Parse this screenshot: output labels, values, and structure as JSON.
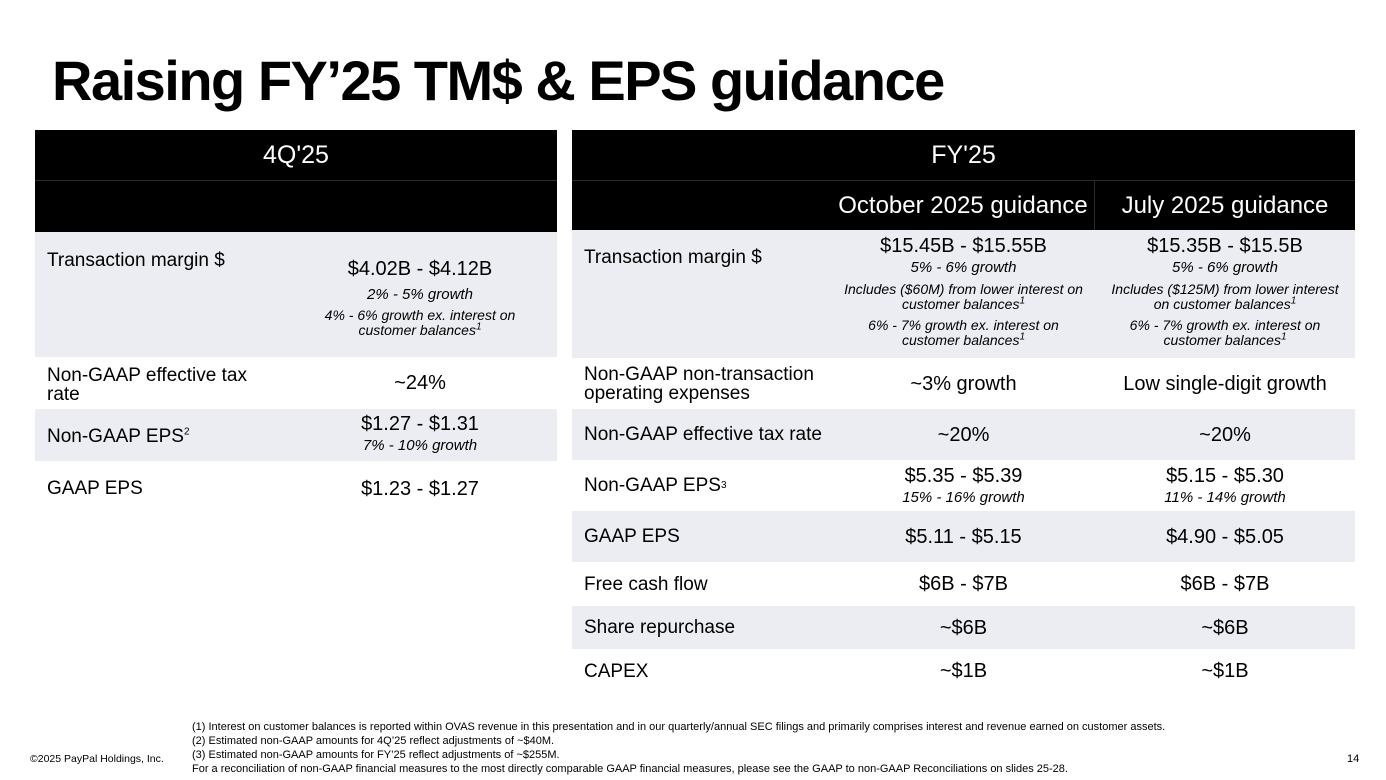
{
  "title": "Raising FY’25 TM$ & EPS guidance",
  "left_table": {
    "header": "4Q'25",
    "rows": {
      "tm": {
        "label": "Transaction margin $",
        "value": "$4.02B - $4.12B",
        "growth": "2% - 5% growth",
        "note": "4% - 6% growth ex. interest on customer balances",
        "note_sup": "1"
      },
      "tax": {
        "label": "Non-GAAP effective tax rate",
        "value": "~24%"
      },
      "eps": {
        "label": "Non-GAAP EPS",
        "label_sup": "2",
        "value": "$1.27 - $1.31",
        "growth": "7% - 10% growth"
      },
      "gaap": {
        "label": "GAAP EPS",
        "value": "$1.23 - $1.27"
      }
    }
  },
  "right_table": {
    "header": "FY'25",
    "col1": "October 2025 guidance",
    "col2": "July 2025 guidance",
    "rows": {
      "tm": {
        "label": "Transaction margin $",
        "oct": {
          "value": "$15.45B - $15.55B",
          "growth": "5% - 6% growth",
          "note1": "Includes ($60M) from lower interest on customer balances",
          "note2": "6% - 7% growth ex. interest on customer balances"
        },
        "jul": {
          "value": "$15.35B - $15.5B",
          "growth": "5% - 6% growth",
          "note1": "Includes ($125M) from lower interest on customer balances",
          "note2": "6% - 7% growth ex. interest on customer balances"
        },
        "note_sup": "1"
      },
      "opex": {
        "label": "Non-GAAP non-transaction operating expenses",
        "oct": "~3% growth",
        "jul": "Low single-digit growth"
      },
      "tax": {
        "label": "Non-GAAP effective tax rate",
        "oct": "~20%",
        "jul": "~20%"
      },
      "eps": {
        "label": "Non-GAAP EPS",
        "label_sup": "3",
        "oct": "$5.35 - $5.39",
        "oct_growth": "15% - 16% growth",
        "jul": "$5.15 - $5.30",
        "jul_growth": "11% - 14% growth"
      },
      "gaap": {
        "label": "GAAP EPS",
        "oct": "$5.11 - $5.15",
        "jul": "$4.90 - $5.05"
      },
      "fcf": {
        "label": "Free cash flow",
        "oct": "$6B - $7B",
        "jul": "$6B - $7B"
      },
      "repurchase": {
        "label": "Share repurchase",
        "oct": "~$6B",
        "jul": "~$6B"
      },
      "capex": {
        "label": "CAPEX",
        "oct": "~$1B",
        "jul": "~$1B"
      }
    }
  },
  "footer": {
    "copyright": "©2025 PayPal Holdings, Inc.",
    "footnotes": [
      "(1) Interest on customer balances is reported within OVAS revenue in this presentation and in our quarterly/annual SEC filings and primarily comprises interest and revenue earned on customer assets.",
      "(2) Estimated non-GAAP amounts for 4Q’25 reflect adjustments of ~$40M.",
      "(3) Estimated non-GAAP amounts for FY’25 reflect adjustments of ~$255M.",
      "For a reconciliation of non-GAAP financial measures to the most directly comparable GAAP financial measures, please see the GAAP to non-GAAP Reconciliations on slides 25-28."
    ],
    "page": "14"
  }
}
